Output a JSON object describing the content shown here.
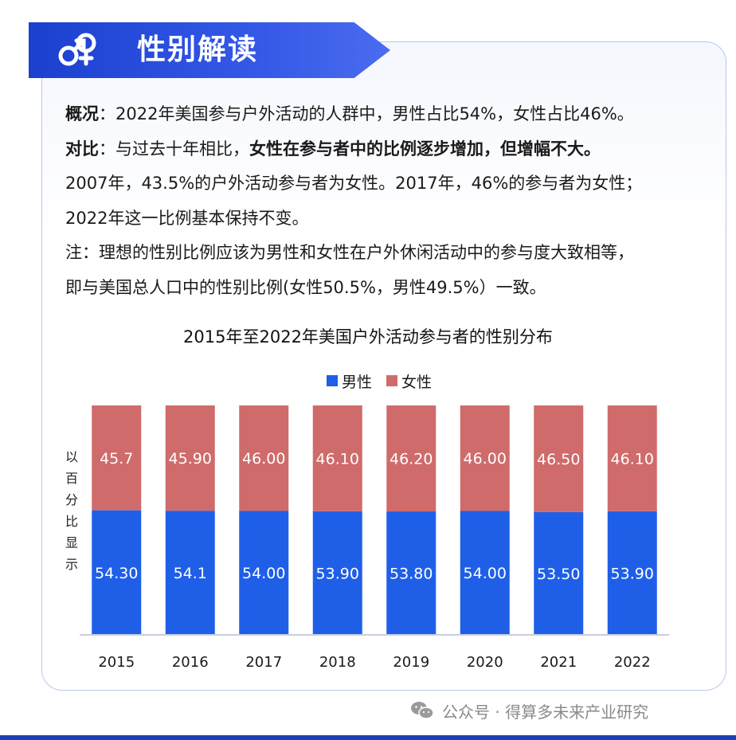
{
  "header": {
    "title": "性别解读",
    "icon": "gender-symbol-icon"
  },
  "paragraphs": {
    "l1_key": "概况",
    "l1_text": "：2022年美国参与户外活动的人群中，男性占比54%，女性占比46%。",
    "l2_key": "对比",
    "l2_text_a": "：与过去十年相比，",
    "l2_text_b": "女性在参与者中的比例逐步增加，但增幅不大。",
    "l3": "2007年，43.5%的户外活动参与者为女性。2017年，46%的参与者为女性；",
    "l4": "2022年这一比例基本保持不变。",
    "l5": "注：理想的性别比例应该为男性和女性在户外休闲活动中的参与度大致相等，",
    "l6": "即与美国总人口中的性别比例(女性50.5%，男性49.5%）一致。"
  },
  "chart_data": {
    "type": "bar",
    "stacked": true,
    "title": "2015年至2022年美国户外活动参与者的性别分布",
    "ylabel": "以百分比显示",
    "categories": [
      "2015",
      "2016",
      "2017",
      "2018",
      "2019",
      "2020",
      "2021",
      "2022"
    ],
    "series": [
      {
        "name": "男性",
        "color": "#1f5fe8",
        "values": [
          54.3,
          54.1,
          54.0,
          53.9,
          53.8,
          54.0,
          53.5,
          53.9
        ],
        "labels": [
          "54.30",
          "54.1",
          "54.00",
          "53.90",
          "53.80",
          "54.00",
          "53.50",
          "53.90"
        ]
      },
      {
        "name": "女性",
        "color": "#d06b6b",
        "values": [
          45.7,
          45.9,
          46.0,
          46.1,
          46.2,
          46.0,
          46.5,
          46.1
        ],
        "labels": [
          "45.7",
          "45.90",
          "46.00",
          "46.10",
          "46.20",
          "46.00",
          "46.50",
          "46.10"
        ]
      }
    ],
    "ylim": [
      0,
      100
    ],
    "grid": false,
    "legend_position": "top"
  },
  "footer": {
    "icon": "wechat-icon",
    "text": "公众号 · 得算多未来产业研究"
  }
}
